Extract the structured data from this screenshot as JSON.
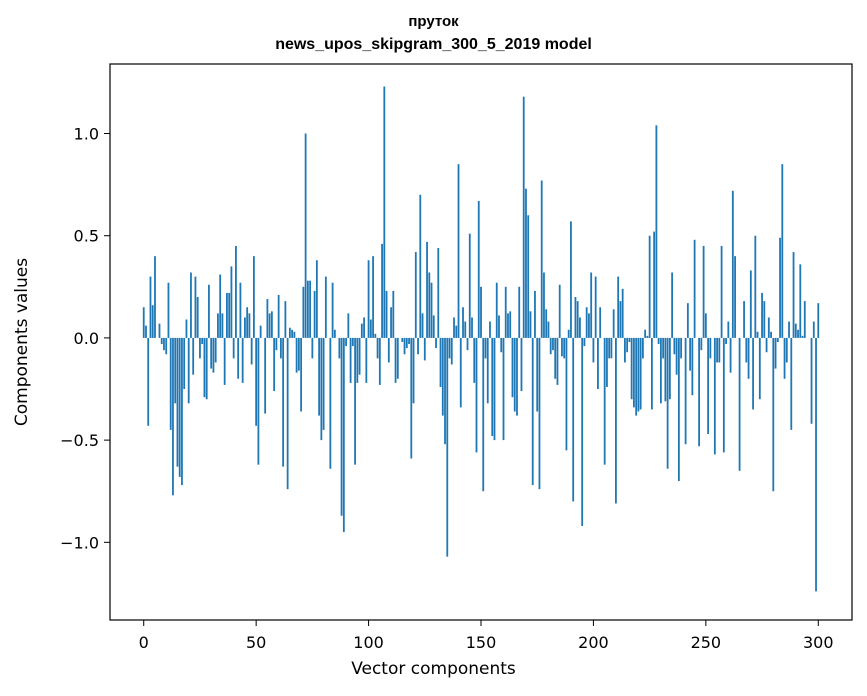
{
  "chart_data": {
    "type": "bar",
    "title_line1": "пруток",
    "title_line2": "news_upos_skipgram_300_5_2019 model",
    "xlabel": "Vector components",
    "ylabel": "Components values",
    "xlim": [
      -15,
      315
    ],
    "ylim": [
      -1.38,
      1.34
    ],
    "xticks": [
      0,
      50,
      100,
      150,
      200,
      250,
      300
    ],
    "xtick_labels": [
      "0",
      "50",
      "100",
      "150",
      "200",
      "250",
      "300"
    ],
    "yticks": [
      -1.0,
      -0.5,
      0.0,
      0.5,
      1.0
    ],
    "ytick_labels": [
      "−1.0",
      "−0.5",
      "0.0",
      "0.5",
      "1.0"
    ],
    "bar_color": "#1f77b4",
    "values": [
      0.15,
      0.06,
      -0.43,
      0.3,
      0.16,
      0.4,
      0.0,
      0.07,
      -0.03,
      -0.06,
      -0.08,
      0.27,
      -0.45,
      -0.77,
      -0.32,
      -0.63,
      -0.68,
      -0.72,
      -0.25,
      0.09,
      -0.32,
      0.32,
      -0.18,
      0.3,
      0.2,
      -0.1,
      -0.03,
      -0.29,
      -0.3,
      0.26,
      -0.15,
      -0.17,
      -0.12,
      0.12,
      0.31,
      0.12,
      -0.23,
      0.22,
      0.22,
      0.35,
      -0.1,
      0.45,
      -0.2,
      0.27,
      -0.22,
      0.1,
      0.15,
      0.12,
      -0.13,
      0.4,
      -0.43,
      -0.62,
      0.06,
      0.0,
      -0.37,
      0.19,
      0.12,
      0.13,
      -0.26,
      -0.06,
      0.21,
      -0.1,
      -0.63,
      0.18,
      -0.74,
      0.05,
      0.04,
      0.03,
      -0.17,
      -0.16,
      -0.36,
      0.25,
      1.0,
      0.28,
      0.28,
      -0.1,
      0.23,
      0.38,
      -0.38,
      -0.5,
      -0.45,
      0.3,
      0.0,
      -0.64,
      0.27,
      0.04,
      0.0,
      -0.1,
      -0.87,
      -0.95,
      -0.04,
      0.12,
      -0.22,
      -0.04,
      -0.62,
      -0.22,
      -0.18,
      0.07,
      0.1,
      -0.22,
      0.38,
      0.09,
      0.4,
      0.02,
      -0.1,
      -0.23,
      0.46,
      1.23,
      0.23,
      -0.12,
      0.15,
      0.23,
      -0.22,
      -0.2,
      0.0,
      -0.02,
      -0.08,
      -0.05,
      -0.03,
      -0.59,
      -0.32,
      0.42,
      -0.08,
      0.7,
      0.12,
      -0.11,
      0.47,
      0.32,
      0.27,
      0.11,
      -0.05,
      0.44,
      -0.24,
      -0.38,
      -0.52,
      -1.07,
      -0.1,
      -0.13,
      0.1,
      0.06,
      0.85,
      -0.34,
      0.15,
      0.08,
      -0.06,
      0.51,
      0.1,
      -0.22,
      -0.56,
      0.67,
      0.25,
      -0.75,
      -0.1,
      -0.32,
      0.08,
      -0.48,
      -0.5,
      0.27,
      0.11,
      -0.07,
      -0.5,
      0.25,
      0.12,
      0.13,
      -0.29,
      -0.36,
      -0.38,
      0.25,
      -0.26,
      1.18,
      0.73,
      0.6,
      0.13,
      -0.72,
      0.23,
      -0.36,
      -0.74,
      0.77,
      0.32,
      0.14,
      0.08,
      -0.08,
      -0.06,
      -0.2,
      -0.23,
      0.26,
      -0.09,
      -0.1,
      -0.55,
      0.04,
      0.57,
      -0.8,
      0.2,
      0.18,
      0.1,
      -0.92,
      -0.04,
      0.15,
      0.12,
      0.32,
      -0.12,
      0.3,
      -0.25,
      0.15,
      0.0,
      -0.62,
      -0.24,
      -0.1,
      -0.1,
      0.14,
      -0.81,
      0.3,
      0.18,
      0.24,
      -0.12,
      -0.07,
      -0.02,
      -0.3,
      -0.34,
      -0.38,
      -0.36,
      -0.35,
      -0.1,
      0.04,
      0.01,
      0.5,
      -0.35,
      0.52,
      1.04,
      -0.03,
      -0.32,
      -0.1,
      -0.31,
      -0.64,
      -0.3,
      0.32,
      -0.08,
      -0.18,
      -0.7,
      -0.1,
      0.0,
      -0.52,
      0.17,
      -0.16,
      -0.28,
      0.48,
      0.0,
      -0.53,
      -0.06,
      0.45,
      0.12,
      -0.47,
      -0.1,
      0.0,
      -0.57,
      -0.12,
      -0.12,
      0.45,
      -0.56,
      -0.03,
      0.08,
      -0.17,
      0.72,
      0.4,
      0.0,
      -0.65,
      0.0,
      0.18,
      -0.12,
      -0.2,
      0.33,
      -0.35,
      0.5,
      0.03,
      -0.3,
      0.22,
      0.18,
      -0.07,
      0.1,
      0.03,
      -0.75,
      -0.15,
      -0.02,
      0.49,
      0.85,
      -0.2,
      -0.12,
      0.08,
      -0.45,
      0.42,
      0.07,
      0.04,
      0.36,
      0.01,
      0.18,
      0.0,
      0.0,
      -0.42,
      0.08,
      -1.24,
      0.17
    ]
  }
}
